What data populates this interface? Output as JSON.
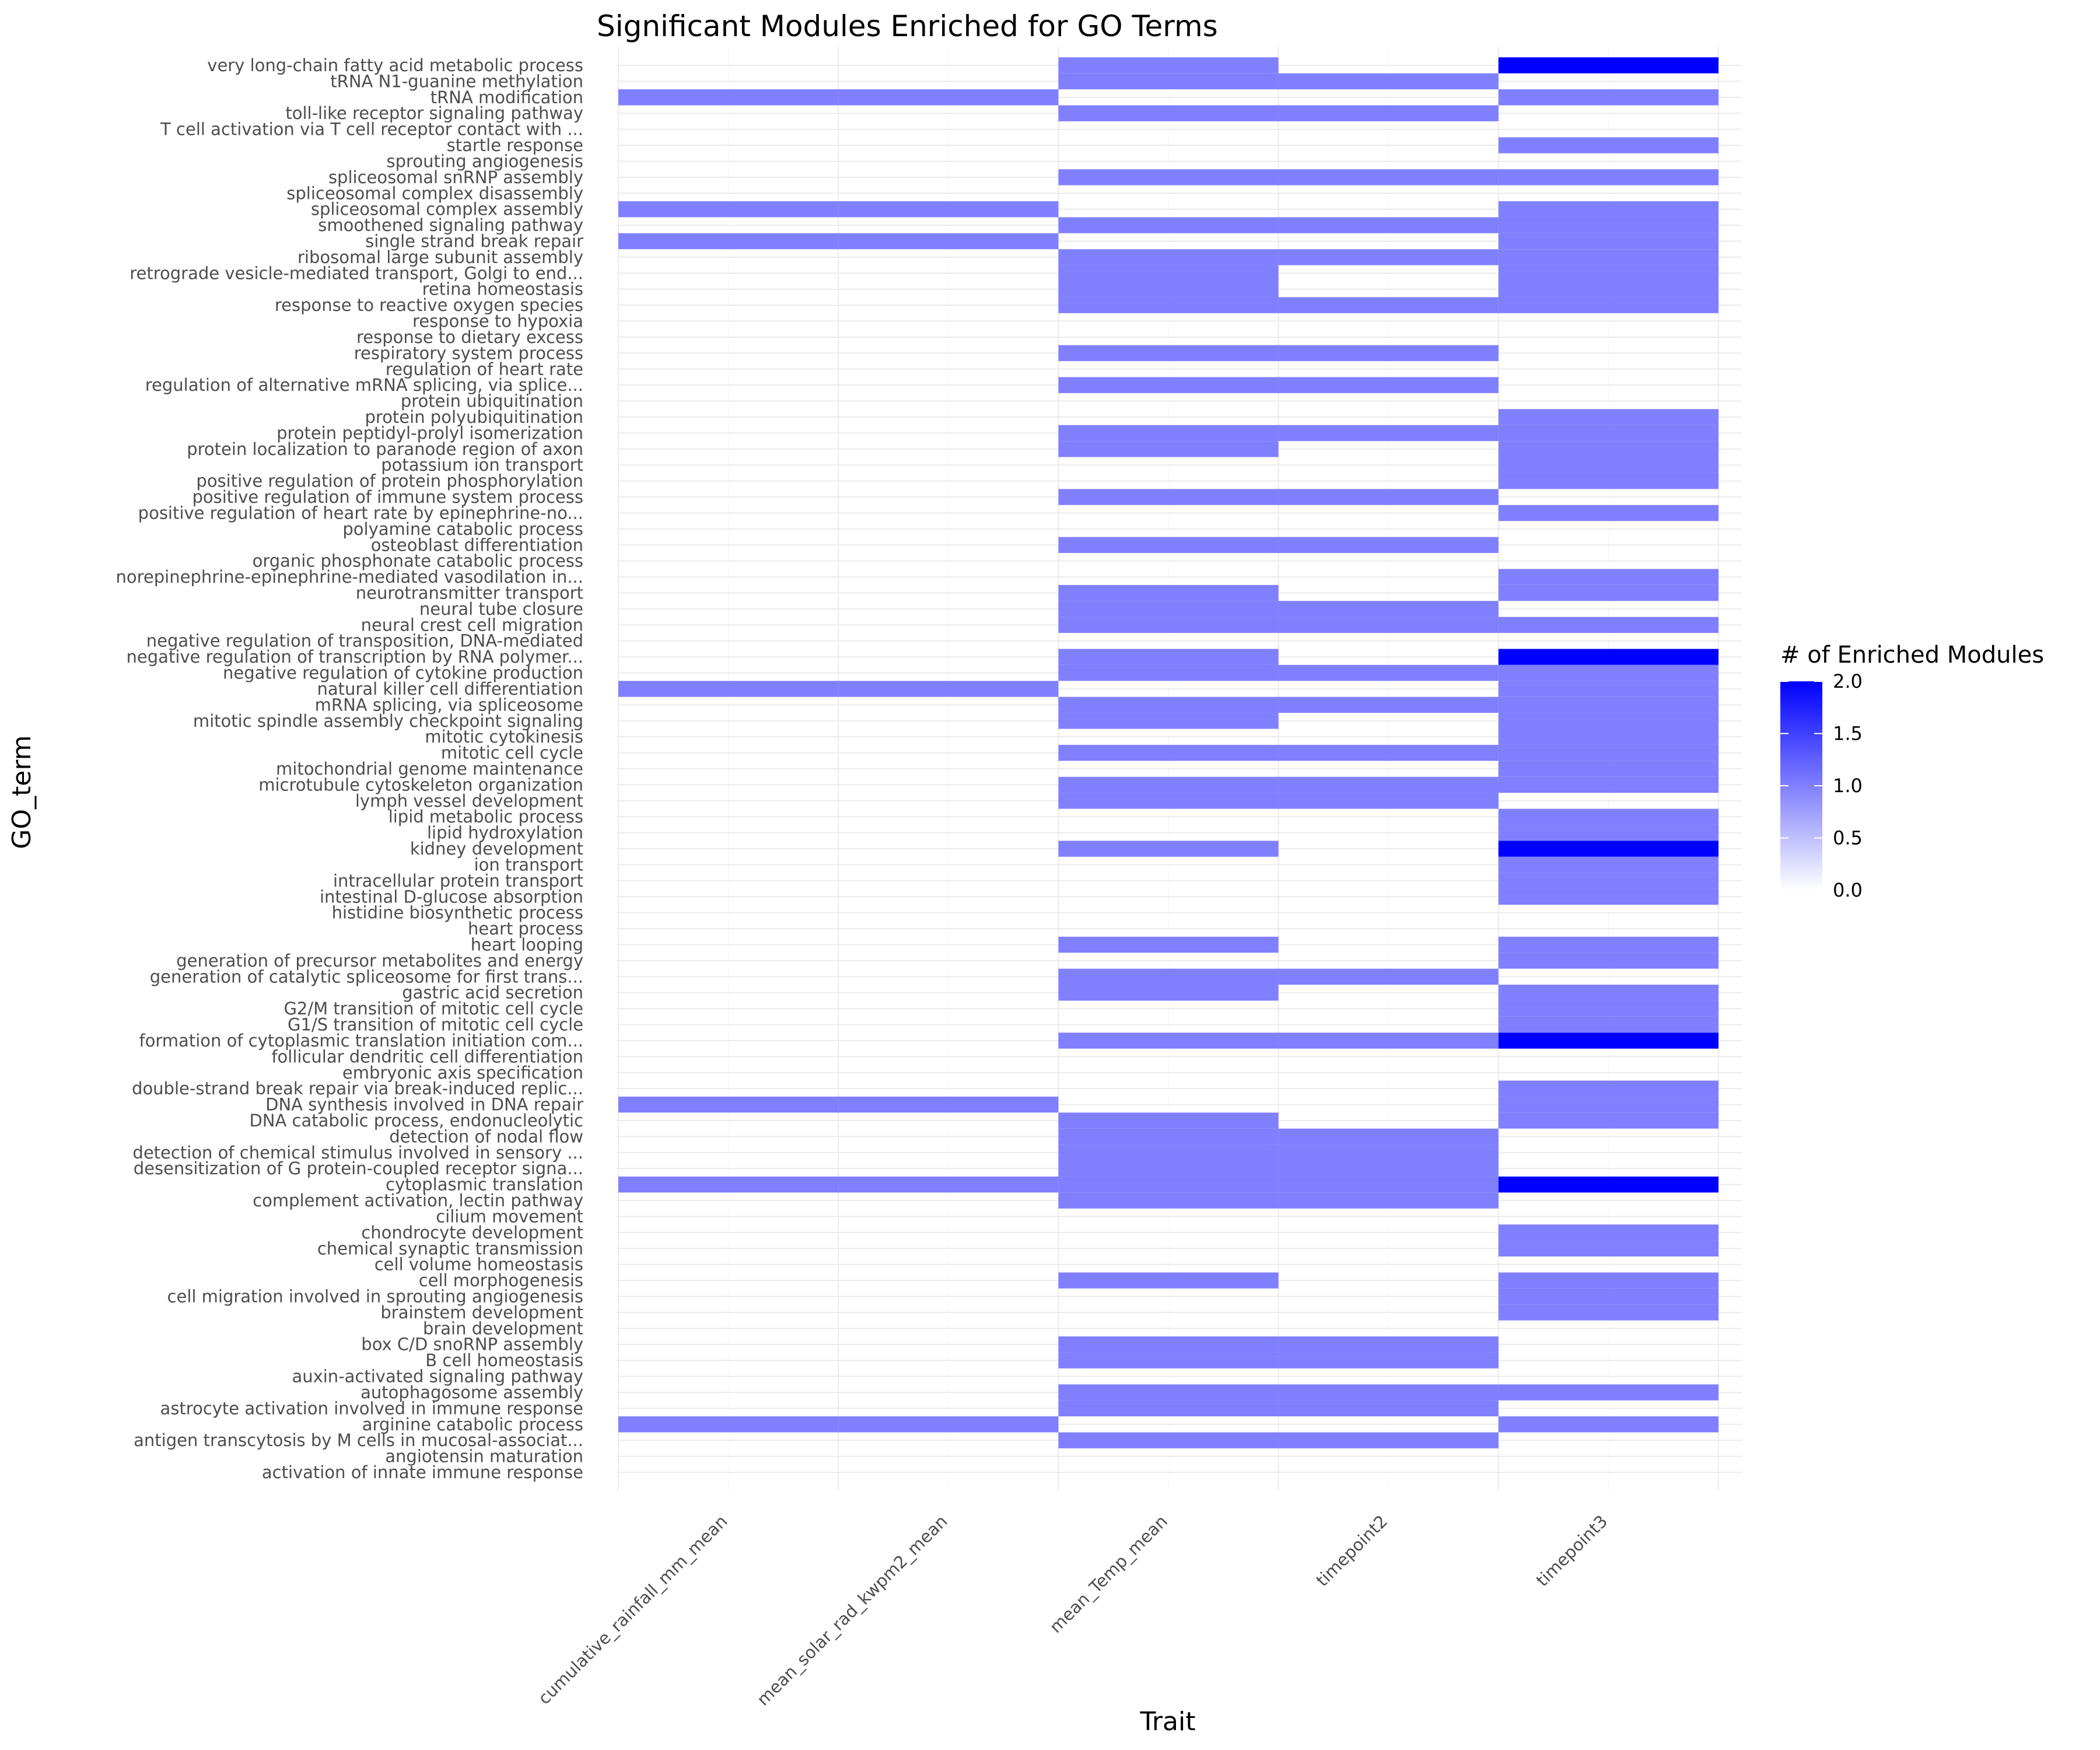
{
  "chart_data": {
    "type": "heatmap",
    "title": "Significant Modules Enriched for GO Terms",
    "xlabel": "Trait",
    "ylabel": "GO_term",
    "legend": {
      "title": "# of Enriched Modules",
      "ticks": [
        "2.0",
        "1.5",
        "1.0",
        "0.5",
        "0.0"
      ],
      "range": [
        0,
        2
      ],
      "low_color": "#ffffff",
      "high_color": "#0000ff",
      "placement": "right"
    },
    "categories": [
      "cumulative_rainfall_mm_mean",
      "mean_solar_rad_kwpm2_mean",
      "mean_Temp_mean",
      "timepoint2",
      "timepoint3"
    ],
    "grid": true,
    "rows": [
      {
        "term": "very long-chain fatty acid metabolic process",
        "values": [
          0,
          0,
          1,
          0,
          2
        ]
      },
      {
        "term": "tRNA N1-guanine methylation",
        "values": [
          0,
          0,
          1,
          1,
          0
        ]
      },
      {
        "term": "tRNA modification",
        "values": [
          1,
          1,
          0,
          0,
          1
        ]
      },
      {
        "term": "toll-like receptor signaling pathway",
        "values": [
          0,
          0,
          1,
          1,
          0
        ]
      },
      {
        "term": "T cell activation via T cell receptor contact with ...",
        "values": [
          0,
          0,
          0,
          0,
          0
        ]
      },
      {
        "term": "startle response",
        "values": [
          0,
          0,
          0,
          0,
          1
        ]
      },
      {
        "term": "sprouting angiogenesis",
        "values": [
          0,
          0,
          0,
          0,
          0
        ]
      },
      {
        "term": "spliceosomal snRNP assembly",
        "values": [
          0,
          0,
          1,
          1,
          1
        ]
      },
      {
        "term": "spliceosomal complex disassembly",
        "values": [
          0,
          0,
          0,
          0,
          0
        ]
      },
      {
        "term": "spliceosomal complex assembly",
        "values": [
          1,
          1,
          0,
          0,
          1
        ]
      },
      {
        "term": "smoothened signaling pathway",
        "values": [
          0,
          0,
          1,
          1,
          1
        ]
      },
      {
        "term": "single strand break repair",
        "values": [
          1,
          1,
          0,
          0,
          1
        ]
      },
      {
        "term": "ribosomal large subunit assembly",
        "values": [
          0,
          0,
          1,
          1,
          1
        ]
      },
      {
        "term": "retrograde vesicle-mediated transport, Golgi to end...",
        "values": [
          0,
          0,
          1,
          0,
          1
        ]
      },
      {
        "term": "retina homeostasis",
        "values": [
          0,
          0,
          1,
          0,
          1
        ]
      },
      {
        "term": "response to reactive oxygen species",
        "values": [
          0,
          0,
          1,
          1,
          1
        ]
      },
      {
        "term": "response to hypoxia",
        "values": [
          0,
          0,
          0,
          0,
          0
        ]
      },
      {
        "term": "response to dietary excess",
        "values": [
          0,
          0,
          0,
          0,
          0
        ]
      },
      {
        "term": "respiratory system process",
        "values": [
          0,
          0,
          1,
          1,
          0
        ]
      },
      {
        "term": "regulation of heart rate",
        "values": [
          0,
          0,
          0,
          0,
          0
        ]
      },
      {
        "term": "regulation of alternative mRNA splicing, via splice...",
        "values": [
          0,
          0,
          1,
          1,
          0
        ]
      },
      {
        "term": "protein ubiquitination",
        "values": [
          0,
          0,
          0,
          0,
          0
        ]
      },
      {
        "term": "protein polyubiquitination",
        "values": [
          0,
          0,
          0,
          0,
          1
        ]
      },
      {
        "term": "protein peptidyl-prolyl isomerization",
        "values": [
          0,
          0,
          1,
          1,
          1
        ]
      },
      {
        "term": "protein localization to paranode region of axon",
        "values": [
          0,
          0,
          1,
          0,
          1
        ]
      },
      {
        "term": "potassium ion transport",
        "values": [
          0,
          0,
          0,
          0,
          1
        ]
      },
      {
        "term": "positive regulation of protein phosphorylation",
        "values": [
          0,
          0,
          0,
          0,
          1
        ]
      },
      {
        "term": "positive regulation of immune system process",
        "values": [
          0,
          0,
          1,
          1,
          0
        ]
      },
      {
        "term": "positive regulation of heart rate by epinephrine-no...",
        "values": [
          0,
          0,
          0,
          0,
          1
        ]
      },
      {
        "term": "polyamine catabolic process",
        "values": [
          0,
          0,
          0,
          0,
          0
        ]
      },
      {
        "term": "osteoblast differentiation",
        "values": [
          0,
          0,
          1,
          1,
          0
        ]
      },
      {
        "term": "organic phosphonate catabolic process",
        "values": [
          0,
          0,
          0,
          0,
          0
        ]
      },
      {
        "term": "norepinephrine-epinephrine-mediated vasodilation in...",
        "values": [
          0,
          0,
          0,
          0,
          1
        ]
      },
      {
        "term": "neurotransmitter transport",
        "values": [
          0,
          0,
          1,
          0,
          1
        ]
      },
      {
        "term": "neural tube closure",
        "values": [
          0,
          0,
          1,
          1,
          0
        ]
      },
      {
        "term": "neural crest cell migration",
        "values": [
          0,
          0,
          1,
          1,
          1
        ]
      },
      {
        "term": "negative regulation of transposition, DNA-mediated",
        "values": [
          0,
          0,
          0,
          0,
          0
        ]
      },
      {
        "term": "negative regulation of transcription by RNA polymer...",
        "values": [
          0,
          0,
          1,
          0,
          2
        ]
      },
      {
        "term": "negative regulation of cytokine production",
        "values": [
          0,
          0,
          1,
          1,
          1
        ]
      },
      {
        "term": "natural killer cell differentiation",
        "values": [
          1,
          1,
          0,
          0,
          1
        ]
      },
      {
        "term": "mRNA splicing, via spliceosome",
        "values": [
          0,
          0,
          1,
          1,
          1
        ]
      },
      {
        "term": "mitotic spindle assembly checkpoint signaling",
        "values": [
          0,
          0,
          1,
          0,
          1
        ]
      },
      {
        "term": "mitotic cytokinesis",
        "values": [
          0,
          0,
          0,
          0,
          1
        ]
      },
      {
        "term": "mitotic cell cycle",
        "values": [
          0,
          0,
          1,
          1,
          1
        ]
      },
      {
        "term": "mitochondrial genome maintenance",
        "values": [
          0,
          0,
          0,
          0,
          1
        ]
      },
      {
        "term": "microtubule cytoskeleton organization",
        "values": [
          0,
          0,
          1,
          1,
          1
        ]
      },
      {
        "term": "lymph vessel development",
        "values": [
          0,
          0,
          1,
          1,
          0
        ]
      },
      {
        "term": "lipid metabolic process",
        "values": [
          0,
          0,
          0,
          0,
          1
        ]
      },
      {
        "term": "lipid hydroxylation",
        "values": [
          0,
          0,
          0,
          0,
          1
        ]
      },
      {
        "term": "kidney development",
        "values": [
          0,
          0,
          1,
          0,
          2
        ]
      },
      {
        "term": "ion transport",
        "values": [
          0,
          0,
          0,
          0,
          1
        ]
      },
      {
        "term": "intracellular protein transport",
        "values": [
          0,
          0,
          0,
          0,
          1
        ]
      },
      {
        "term": "intestinal D-glucose absorption",
        "values": [
          0,
          0,
          0,
          0,
          1
        ]
      },
      {
        "term": "histidine biosynthetic process",
        "values": [
          0,
          0,
          0,
          0,
          0
        ]
      },
      {
        "term": "heart process",
        "values": [
          0,
          0,
          0,
          0,
          0
        ]
      },
      {
        "term": "heart looping",
        "values": [
          0,
          0,
          1,
          0,
          1
        ]
      },
      {
        "term": "generation of precursor metabolites and energy",
        "values": [
          0,
          0,
          0,
          0,
          1
        ]
      },
      {
        "term": "generation of catalytic spliceosome for first trans...",
        "values": [
          0,
          0,
          1,
          1,
          0
        ]
      },
      {
        "term": "gastric acid secretion",
        "values": [
          0,
          0,
          1,
          0,
          1
        ]
      },
      {
        "term": "G2/M transition of mitotic cell cycle",
        "values": [
          0,
          0,
          0,
          0,
          1
        ]
      },
      {
        "term": "G1/S transition of mitotic cell cycle",
        "values": [
          0,
          0,
          0,
          0,
          1
        ]
      },
      {
        "term": "formation of cytoplasmic translation initiation com...",
        "values": [
          0,
          0,
          1,
          1,
          2
        ]
      },
      {
        "term": "follicular dendritic cell differentiation",
        "values": [
          0,
          0,
          0,
          0,
          0
        ]
      },
      {
        "term": "embryonic axis specification",
        "values": [
          0,
          0,
          0,
          0,
          0
        ]
      },
      {
        "term": "double-strand break repair via break-induced replic...",
        "values": [
          0,
          0,
          0,
          0,
          1
        ]
      },
      {
        "term": "DNA synthesis involved in DNA repair",
        "values": [
          1,
          1,
          0,
          0,
          1
        ]
      },
      {
        "term": "DNA catabolic process, endonucleolytic",
        "values": [
          0,
          0,
          1,
          0,
          1
        ]
      },
      {
        "term": "detection of nodal flow",
        "values": [
          0,
          0,
          1,
          1,
          0
        ]
      },
      {
        "term": "detection of chemical stimulus involved in sensory ...",
        "values": [
          0,
          0,
          1,
          1,
          0
        ]
      },
      {
        "term": "desensitization of G protein-coupled receptor signa...",
        "values": [
          0,
          0,
          1,
          1,
          0
        ]
      },
      {
        "term": "cytoplasmic translation",
        "values": [
          1,
          1,
          1,
          1,
          2
        ]
      },
      {
        "term": "complement activation, lectin pathway",
        "values": [
          0,
          0,
          1,
          1,
          0
        ]
      },
      {
        "term": "cilium movement",
        "values": [
          0,
          0,
          0,
          0,
          0
        ]
      },
      {
        "term": "chondrocyte development",
        "values": [
          0,
          0,
          0,
          0,
          1
        ]
      },
      {
        "term": "chemical synaptic transmission",
        "values": [
          0,
          0,
          0,
          0,
          1
        ]
      },
      {
        "term": "cell volume homeostasis",
        "values": [
          0,
          0,
          0,
          0,
          0
        ]
      },
      {
        "term": "cell morphogenesis",
        "values": [
          0,
          0,
          1,
          0,
          1
        ]
      },
      {
        "term": "cell migration involved in sprouting angiogenesis",
        "values": [
          0,
          0,
          0,
          0,
          1
        ]
      },
      {
        "term": "brainstem development",
        "values": [
          0,
          0,
          0,
          0,
          1
        ]
      },
      {
        "term": "brain development",
        "values": [
          0,
          0,
          0,
          0,
          0
        ]
      },
      {
        "term": "box C/D snoRNP assembly",
        "values": [
          0,
          0,
          1,
          1,
          0
        ]
      },
      {
        "term": "B cell homeostasis",
        "values": [
          0,
          0,
          1,
          1,
          0
        ]
      },
      {
        "term": "auxin-activated signaling pathway",
        "values": [
          0,
          0,
          0,
          0,
          0
        ]
      },
      {
        "term": "autophagosome assembly",
        "values": [
          0,
          0,
          1,
          1,
          1
        ]
      },
      {
        "term": "astrocyte activation involved in immune response",
        "values": [
          0,
          0,
          1,
          1,
          0
        ]
      },
      {
        "term": "arginine catabolic process",
        "values": [
          1,
          1,
          0,
          0,
          1
        ]
      },
      {
        "term": "antigen transcytosis by M cells in mucosal-associat...",
        "values": [
          0,
          0,
          1,
          1,
          0
        ]
      },
      {
        "term": "angiotensin maturation",
        "values": [
          0,
          0,
          0,
          0,
          0
        ]
      },
      {
        "term": "activation of innate immune response",
        "values": [
          0,
          0,
          0,
          0,
          0
        ]
      }
    ]
  }
}
